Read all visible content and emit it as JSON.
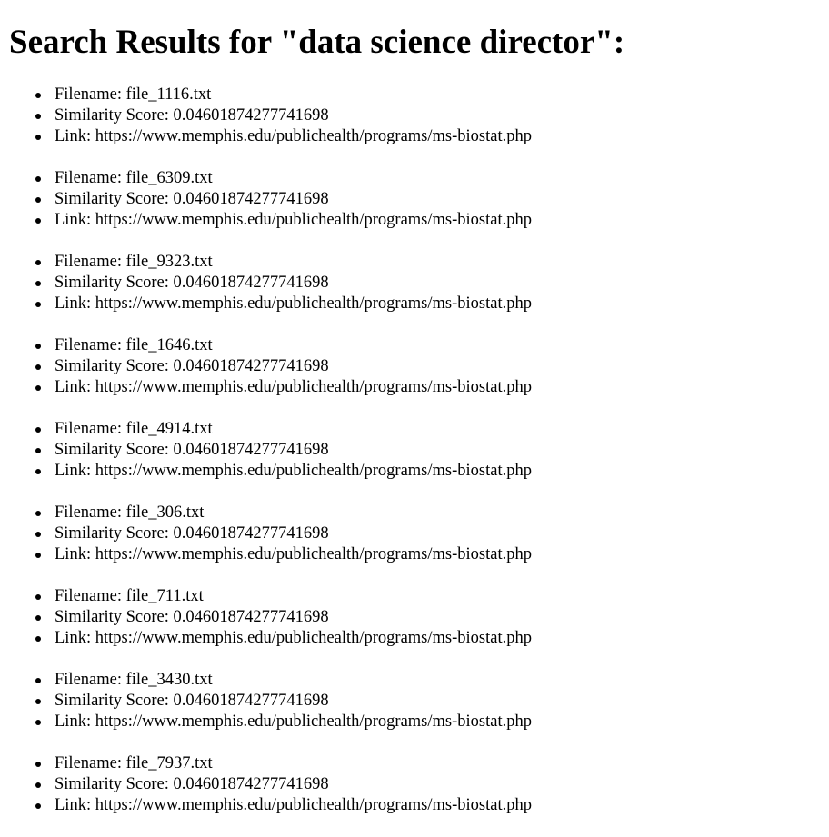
{
  "page": {
    "heading": "Search Results for \"data science director\":"
  },
  "labels": {
    "filename": "Filename:",
    "similarity": "Similarity Score:",
    "link": "Link:"
  },
  "results": [
    {
      "filename": "file_1116.txt",
      "score": "0.04601874277741698",
      "link": "https://www.memphis.edu/publichealth/programs/ms-biostat.php"
    },
    {
      "filename": "file_6309.txt",
      "score": "0.04601874277741698",
      "link": "https://www.memphis.edu/publichealth/programs/ms-biostat.php"
    },
    {
      "filename": "file_9323.txt",
      "score": "0.04601874277741698",
      "link": "https://www.memphis.edu/publichealth/programs/ms-biostat.php"
    },
    {
      "filename": "file_1646.txt",
      "score": "0.04601874277741698",
      "link": "https://www.memphis.edu/publichealth/programs/ms-biostat.php"
    },
    {
      "filename": "file_4914.txt",
      "score": "0.04601874277741698",
      "link": "https://www.memphis.edu/publichealth/programs/ms-biostat.php"
    },
    {
      "filename": "file_306.txt",
      "score": "0.04601874277741698",
      "link": "https://www.memphis.edu/publichealth/programs/ms-biostat.php"
    },
    {
      "filename": "file_711.txt",
      "score": "0.04601874277741698",
      "link": "https://www.memphis.edu/publichealth/programs/ms-biostat.php"
    },
    {
      "filename": "file_3430.txt",
      "score": "0.04601874277741698",
      "link": "https://www.memphis.edu/publichealth/programs/ms-biostat.php"
    },
    {
      "filename": "file_7937.txt",
      "score": "0.04601874277741698",
      "link": "https://www.memphis.edu/publichealth/programs/ms-biostat.php"
    }
  ]
}
